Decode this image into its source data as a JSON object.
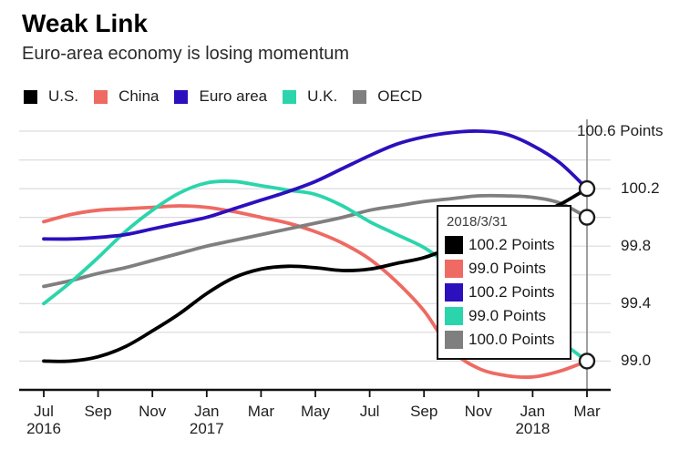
{
  "header": {
    "title": "Weak Link",
    "subtitle": "Euro-area economy is losing momentum"
  },
  "legend": {
    "items": [
      {
        "id": "us",
        "label": "U.S.",
        "color": "#000000"
      },
      {
        "id": "china",
        "label": "China",
        "color": "#ee6a63"
      },
      {
        "id": "euro_area",
        "label": "Euro area",
        "color": "#2c10bd"
      },
      {
        "id": "uk",
        "label": "U.K.",
        "color": "#2bd5ab"
      },
      {
        "id": "oecd",
        "label": "OECD",
        "color": "#7f7f7f"
      }
    ]
  },
  "tooltip": {
    "date": "2018/3/31",
    "rows": [
      {
        "series": "us",
        "color": "#000000",
        "value_label": "100.2 Points"
      },
      {
        "series": "china",
        "color": "#ee6a63",
        "value_label": "99.0 Points"
      },
      {
        "series": "euro_area",
        "color": "#2c10bd",
        "value_label": "100.2 Points"
      },
      {
        "series": "uk",
        "color": "#2bd5ab",
        "value_label": "99.0 Points"
      },
      {
        "series": "oecd",
        "color": "#7f7f7f",
        "value_label": "100.0 Points"
      }
    ]
  },
  "chart_data": {
    "type": "line",
    "title": "Weak Link",
    "subtitle": "Euro-area economy is losing momentum",
    "unit": "Points",
    "x": [
      "Jul 2016",
      "Aug 2016",
      "Sep 2016",
      "Oct 2016",
      "Nov 2016",
      "Dec 2016",
      "Jan 2017",
      "Feb 2017",
      "Mar 2017",
      "Apr 2017",
      "May 2017",
      "Jun 2017",
      "Jul 2017",
      "Aug 2017",
      "Sep 2017",
      "Oct 2017",
      "Nov 2017",
      "Dec 2017",
      "Jan 2018",
      "Feb 2018",
      "Mar 2018"
    ],
    "series": [
      {
        "id": "us",
        "name": "U.S.",
        "color": "#000000",
        "values": [
          99.0,
          99.0,
          99.03,
          99.1,
          99.21,
          99.33,
          99.47,
          99.58,
          99.64,
          99.66,
          99.65,
          99.63,
          99.64,
          99.68,
          99.72,
          99.79,
          99.87,
          99.94,
          100.01,
          100.09,
          100.2
        ]
      },
      {
        "id": "china",
        "name": "China",
        "color": "#ee6a63",
        "values": [
          99.97,
          100.02,
          100.05,
          100.06,
          100.07,
          100.08,
          100.07,
          100.04,
          100.0,
          99.96,
          99.9,
          99.82,
          99.71,
          99.55,
          99.35,
          99.08,
          98.95,
          98.9,
          98.89,
          98.93,
          99.0
        ]
      },
      {
        "id": "euro_area",
        "name": "Euro area",
        "color": "#2c10bd",
        "values": [
          99.85,
          99.85,
          99.86,
          99.88,
          99.92,
          99.96,
          100.0,
          100.06,
          100.12,
          100.18,
          100.25,
          100.34,
          100.43,
          100.51,
          100.56,
          100.59,
          100.6,
          100.58,
          100.5,
          100.38,
          100.2
        ]
      },
      {
        "id": "uk",
        "name": "U.K.",
        "color": "#2bd5ab",
        "values": [
          99.4,
          99.55,
          99.72,
          99.9,
          100.05,
          100.17,
          100.24,
          100.25,
          100.22,
          100.19,
          100.16,
          100.08,
          99.97,
          99.88,
          99.79,
          99.66,
          99.53,
          99.4,
          99.27,
          99.14,
          99.0
        ]
      },
      {
        "id": "oecd",
        "name": "OECD",
        "color": "#7f7f7f",
        "values": [
          99.52,
          99.56,
          99.61,
          99.65,
          99.7,
          99.75,
          99.8,
          99.84,
          99.88,
          99.92,
          99.96,
          100.0,
          100.05,
          100.08,
          100.11,
          100.13,
          100.15,
          100.15,
          100.14,
          100.1,
          100.0
        ]
      }
    ],
    "ylim": [
      98.8,
      100.6
    ],
    "grid_step": 0.2,
    "y_ticks": [
      {
        "value": 100.6,
        "label": "100.6 Points"
      },
      {
        "value": 100.2,
        "label": "100.2"
      },
      {
        "value": 99.8,
        "label": "99.8"
      },
      {
        "value": 99.4,
        "label": "99.4"
      },
      {
        "value": 99.0,
        "label": "99.0"
      }
    ],
    "x_ticks": [
      {
        "month": "Jul",
        "year": "2016"
      },
      {
        "month": "Sep"
      },
      {
        "month": "Nov"
      },
      {
        "month": "Jan",
        "year": "2017"
      },
      {
        "month": "Mar"
      },
      {
        "month": "May"
      },
      {
        "month": "Jul"
      },
      {
        "month": "Sep"
      },
      {
        "month": "Nov"
      },
      {
        "month": "Jan",
        "year": "2018"
      },
      {
        "month": "Mar"
      }
    ],
    "crosshair": {
      "x": "Mar 2018",
      "marker_values": [
        100.2,
        100.0,
        99.0
      ]
    },
    "legend_position": "top",
    "grid": true
  }
}
